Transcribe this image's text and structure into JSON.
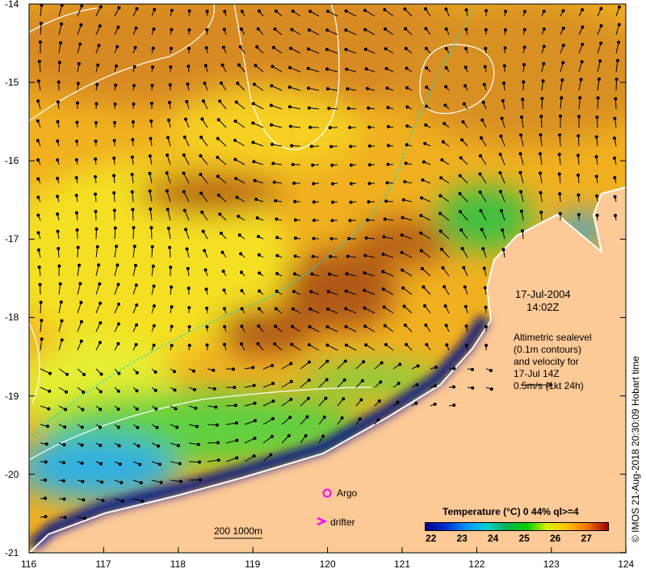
{
  "axes": {
    "lon_ticks": [
      "116",
      "117",
      "118",
      "119",
      "120",
      "121",
      "122",
      "123",
      "124"
    ],
    "lat_ticks": [
      "-14",
      "-15",
      "-16",
      "-17",
      "-18",
      "-19",
      "-20",
      "-21"
    ]
  },
  "datetime": {
    "date": "17-Jul-2004",
    "time": "14:02Z"
  },
  "annotation": {
    "lines": [
      "Altimetric sealevel",
      "(0.1m contours)",
      "and velocity for",
      "17-Jul 14Z",
      "0.5m/s (1kt 24h)"
    ]
  },
  "legend": {
    "argo_label": "Argo",
    "drifter_label": "drifter",
    "title": "Temperature (°C) 0 44% ql>=4",
    "colorbar_ticks": [
      "22",
      "23",
      "24",
      "25",
      "26",
      "27"
    ],
    "scale_bar": "200  1000m"
  },
  "copyright": "© IMOS 21-Aug-2018 20:30:09 Hobart time",
  "colors": {
    "land": "#fdc996",
    "argo": "#ff00ff",
    "contour": "#ffffff",
    "isobath": "#00e0e0"
  }
}
